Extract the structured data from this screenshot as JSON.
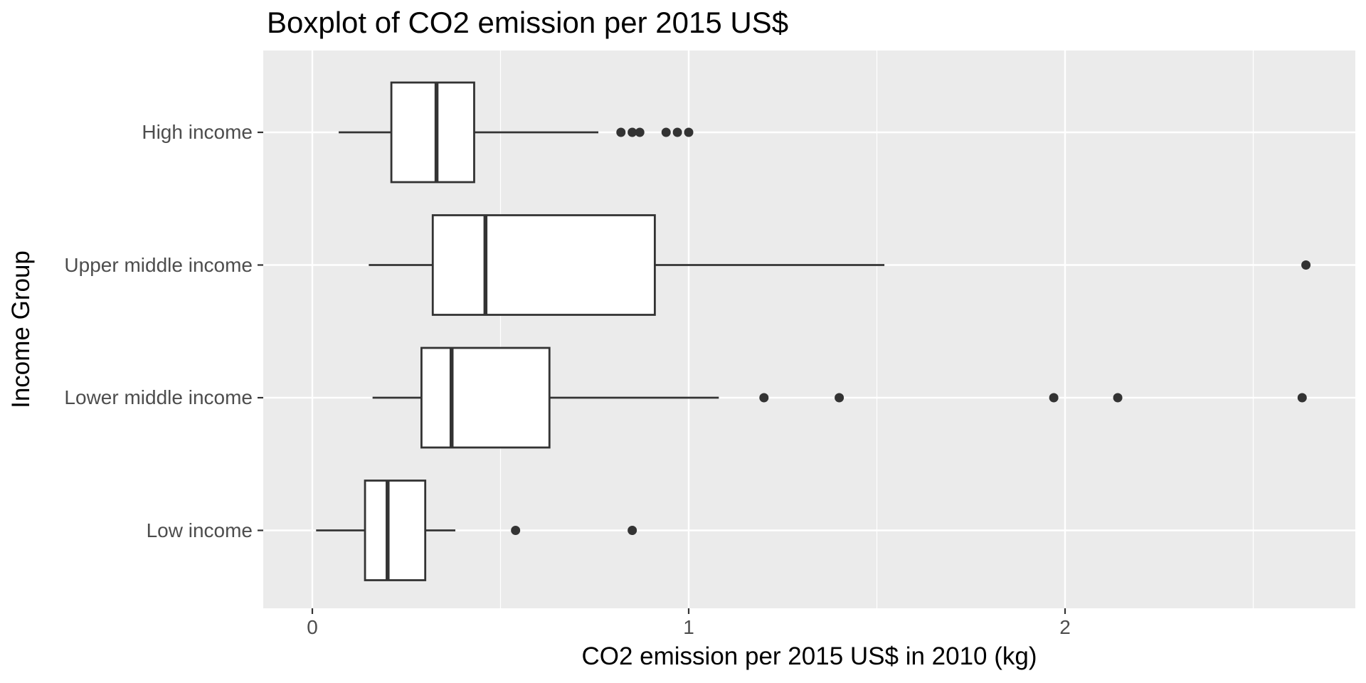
{
  "title": "Boxplot of CO2 emission per 2015 US$",
  "chart_data": {
    "type": "boxplot",
    "orientation": "horizontal",
    "title": "Boxplot of CO2 emission per 2015 US$",
    "xlabel": "CO2 emission per 2015 US$ in 2010 (kg)",
    "ylabel": "Income Group",
    "x_tick_labels": [
      "0",
      "1",
      "2"
    ],
    "x_ticks": [
      0,
      1,
      2
    ],
    "x_minor_gridlines": [
      0.5,
      1.5,
      2.5
    ],
    "xlim": [
      -0.13,
      2.77
    ],
    "grid": true,
    "legend": "none",
    "categories_top_to_bottom": [
      "High income",
      "Upper middle income",
      "Lower middle income",
      "Low income"
    ],
    "series": [
      {
        "group": "High income",
        "whisker_low": 0.07,
        "q1": 0.21,
        "median": 0.33,
        "q3": 0.43,
        "whisker_high": 0.76,
        "outliers": [
          0.82,
          0.85,
          0.87,
          0.94,
          0.97,
          1.0
        ]
      },
      {
        "group": "Upper middle income",
        "whisker_low": 0.15,
        "q1": 0.32,
        "median": 0.46,
        "q3": 0.91,
        "whisker_high": 1.52,
        "outliers": [
          2.64
        ]
      },
      {
        "group": "Lower middle income",
        "whisker_low": 0.16,
        "q1": 0.29,
        "median": 0.37,
        "q3": 0.63,
        "whisker_high": 1.08,
        "outliers": [
          1.2,
          1.4,
          1.97,
          2.14,
          2.63
        ]
      },
      {
        "group": "Low income",
        "whisker_low": 0.01,
        "q1": 0.14,
        "median": 0.2,
        "q3": 0.3,
        "whisker_high": 0.38,
        "outliers": [
          0.54,
          0.85
        ]
      }
    ],
    "style": {
      "panel_bg": "#EBEBEB",
      "grid_color": "#FFFFFF",
      "box_fill": "#FFFFFF",
      "line_color": "#333333",
      "outlier_color": "#333333",
      "tick_mark_color": "#333333",
      "axis_text_color": "#4D4D4D",
      "title_color": "#000000",
      "background": "#FFFFFF"
    }
  }
}
